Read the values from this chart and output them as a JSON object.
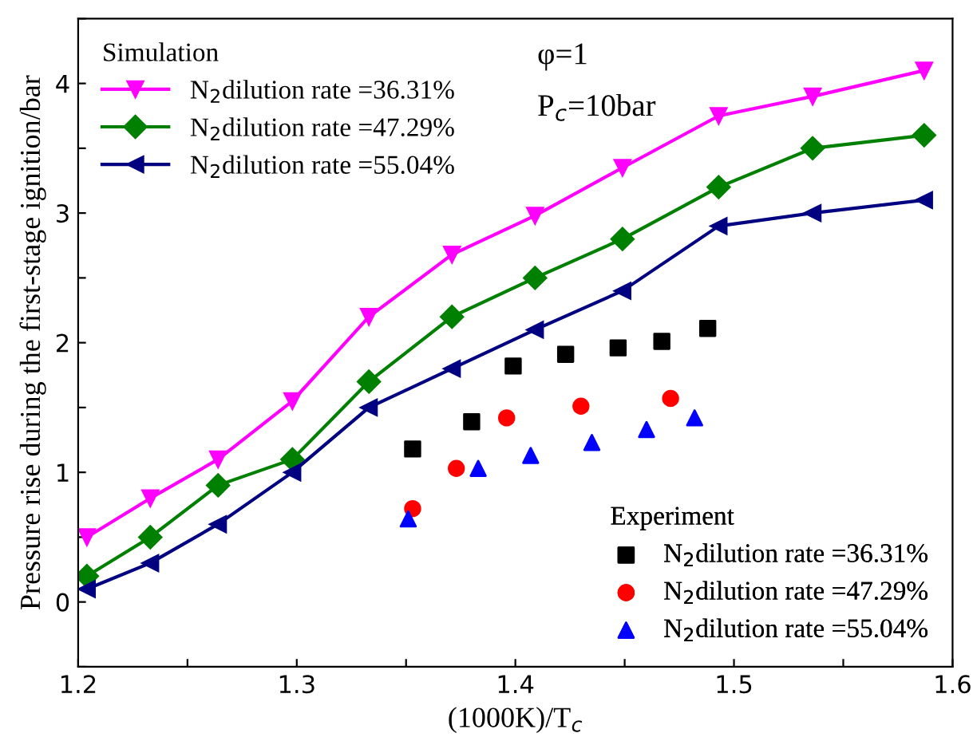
{
  "chart_data": {
    "type": "line",
    "xlabel": "(1000K)/T$_{c}$",
    "ylabel": "Pressure rise during the first-stage ignition/bar",
    "annotations": [
      "φ=1",
      "P$_{c}$=10bar"
    ],
    "legend_title": [
      "Simulation",
      "Experiment"
    ],
    "legend": [
      "top left",
      "bottom right"
    ],
    "xlim": [
      1.2,
      1.6
    ],
    "ylim": [
      -0.5,
      4.5
    ],
    "xticks": [
      1.2,
      {
        "value": 1.25,
        "label": null
      },
      1.3,
      {
        "value": 1.35,
        "label": null
      },
      1.4,
      {
        "value": 1.45,
        "label": null
      },
      1.5,
      {
        "value": 1.55,
        "label": null
      },
      1.6
    ],
    "yticks": [
      {
        "value": -0.5,
        "label": null
      },
      0,
      {
        "value": 0.5,
        "label": null
      },
      1,
      {
        "value": 1.5,
        "label": null
      },
      2,
      {
        "value": 2.5,
        "label": null
      },
      3,
      {
        "value": 3.5,
        "label": null
      },
      4,
      {
        "value": 4.5,
        "label": null
      }
    ],
    "grid": false,
    "series": [
      {
        "name": "N$_{2}$dilution rate =36.31%",
        "color": "#ff00ff",
        "marker": "triangle_down",
        "x": [
          1.204,
          1.233,
          1.264,
          1.298,
          1.333,
          1.371,
          1.409,
          1.449,
          1.493,
          1.536,
          1.587
        ],
        "values": [
          0.5,
          0.8,
          1.1,
          1.55,
          2.2,
          2.68,
          2.98,
          3.35,
          3.75,
          3.9,
          4.1
        ]
      },
      {
        "name": "N$_{2}$dilution rate =47.29%",
        "color": "#008000",
        "marker": "diamond",
        "x": [
          1.204,
          1.233,
          1.264,
          1.298,
          1.333,
          1.371,
          1.409,
          1.449,
          1.493,
          1.536,
          1.587
        ],
        "values": [
          0.2,
          0.5,
          0.9,
          1.1,
          1.7,
          2.2,
          2.5,
          2.8,
          3.2,
          3.5,
          3.6
        ]
      },
      {
        "name": "N$_{2}$dilution rate =55.04%",
        "color": "#000080",
        "marker": "triangle_left",
        "x": [
          1.204,
          1.233,
          1.264,
          1.298,
          1.333,
          1.371,
          1.409,
          1.449,
          1.493,
          1.536,
          1.587
        ],
        "values": [
          0.1,
          0.3,
          0.6,
          1.0,
          1.5,
          1.8,
          2.1,
          2.4,
          2.9,
          3.0,
          3.1
        ]
      },
      {
        "type": "scatter",
        "name": "N$_{2}$dilution rate =36.31%",
        "color": "#000000",
        "marker": "square",
        "x": [
          1.353,
          1.38,
          1.399,
          1.423,
          1.447,
          1.467,
          1.488
        ],
        "values": [
          1.18,
          1.39,
          1.82,
          1.91,
          1.96,
          2.01,
          2.11
        ]
      },
      {
        "type": "scatter",
        "name": "N$_{2}$dilution rate =47.29%",
        "color": "#ff0000",
        "marker": "circle",
        "x": [
          1.353,
          1.373,
          1.396,
          1.43,
          1.471
        ],
        "values": [
          0.72,
          1.03,
          1.42,
          1.51,
          1.57
        ]
      },
      {
        "type": "scatter",
        "name": "N$_{2}$dilution rate =55.04%",
        "color": "#0000ff",
        "marker": "triangle",
        "x": [
          1.351,
          1.383,
          1.407,
          1.435,
          1.46,
          1.482
        ],
        "values": [
          0.64,
          1.03,
          1.13,
          1.23,
          1.33,
          1.42
        ]
      }
    ]
  }
}
